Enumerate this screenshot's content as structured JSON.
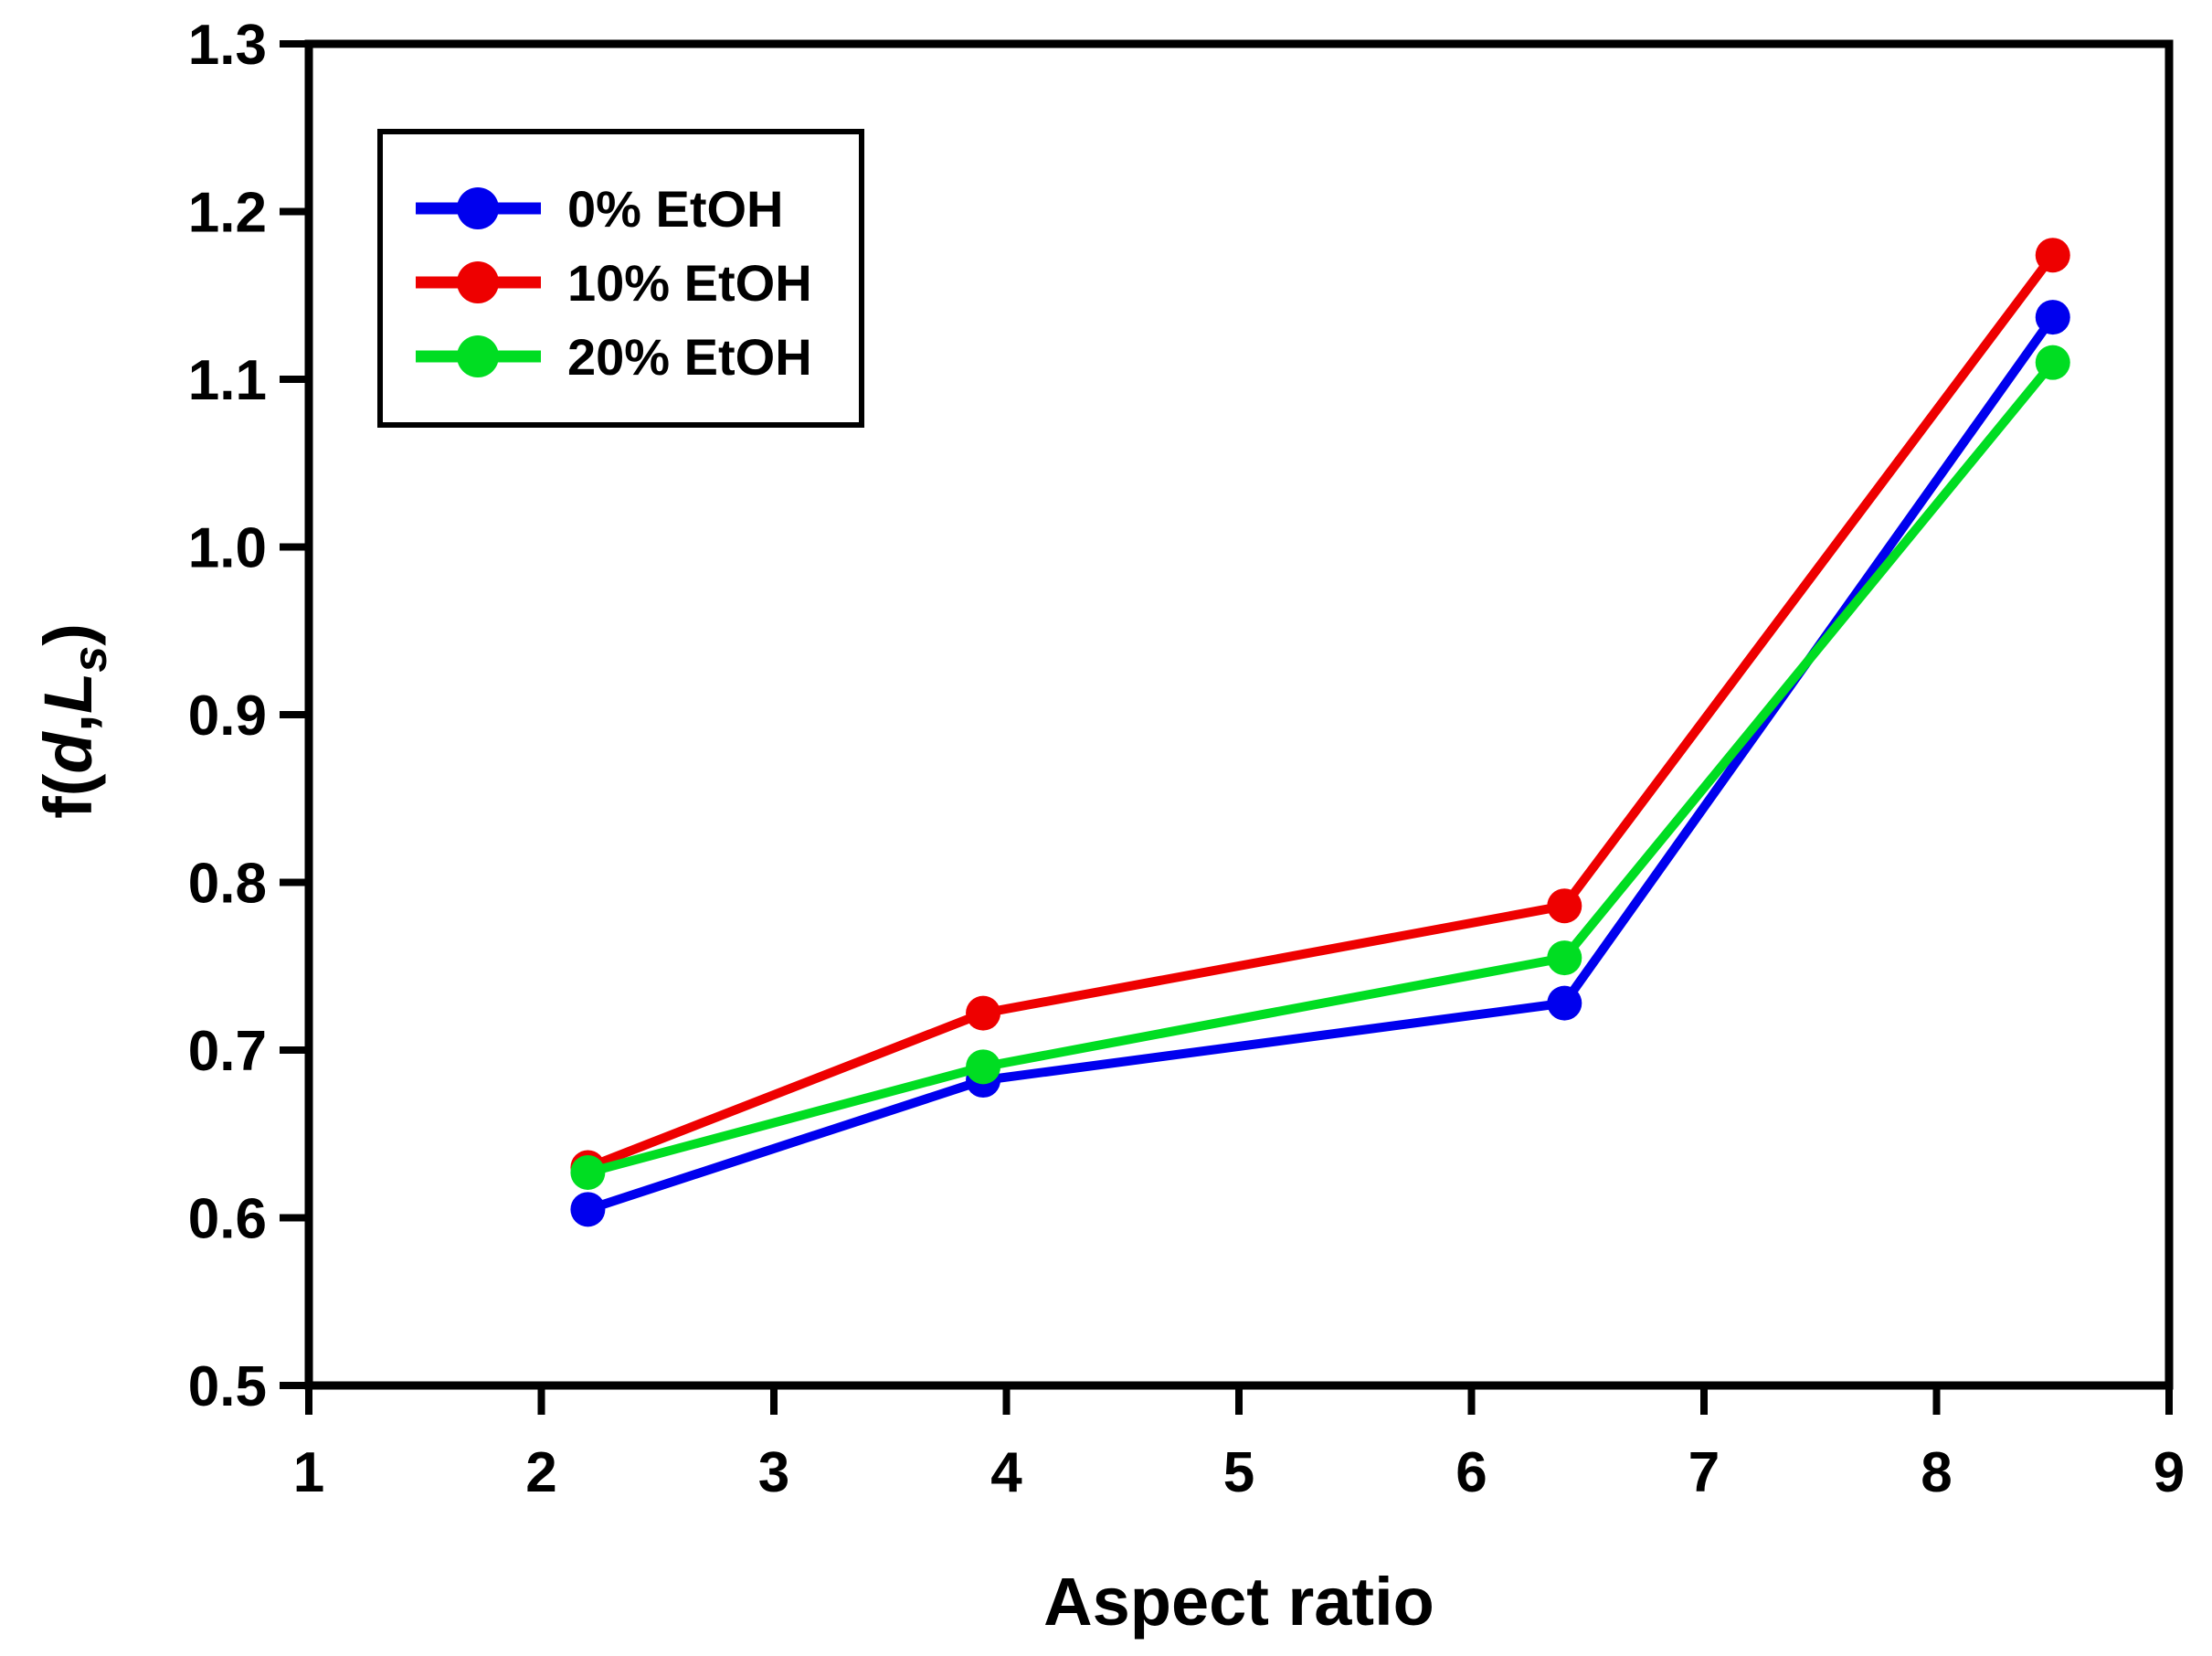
{
  "chart_data": {
    "type": "line",
    "title": "",
    "xlabel": "Aspect ratio",
    "ylabel": {
      "prefix": "f(",
      "var1": "d",
      "comma": ",",
      "var2": "L",
      "subscript": "s",
      "suffix": ")"
    },
    "x": [
      2.2,
      3.9,
      6.4,
      8.5
    ],
    "series": [
      {
        "name": "0% EtOH",
        "color": "#0000EE",
        "values": [
          0.605,
          0.682,
          0.728,
          1.137
        ]
      },
      {
        "name": "10% EtOH",
        "color": "#EE0000",
        "values": [
          0.63,
          0.722,
          0.786,
          1.174
        ]
      },
      {
        "name": "20% EtOH",
        "color": "#00DD22",
        "values": [
          0.627,
          0.69,
          0.755,
          1.11
        ]
      }
    ],
    "xticks": [
      "1",
      "2",
      "3",
      "4",
      "5",
      "6",
      "7",
      "8",
      "9"
    ],
    "yticks": [
      "0.5",
      "0.6",
      "0.7",
      "0.8",
      "0.9",
      "1.0",
      "1.1",
      "1.2",
      "1.3"
    ],
    "xlim": [
      1,
      9
    ],
    "ylim": [
      0.5,
      1.3
    ],
    "grid": false,
    "legend_position": "top-left",
    "background_color": "#FFFFFF",
    "axis_color": "#000000"
  }
}
